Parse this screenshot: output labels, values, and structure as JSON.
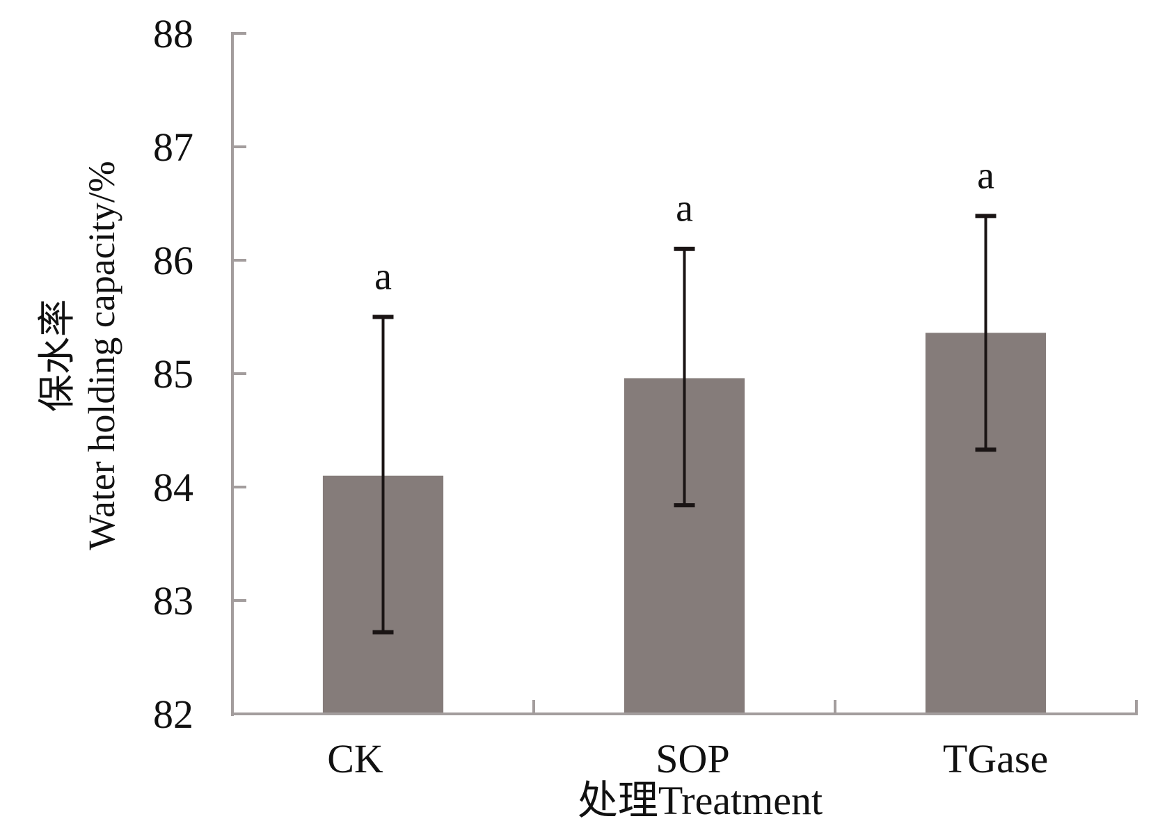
{
  "chart_data": {
    "type": "bar",
    "title": "",
    "categories": [
      "CK",
      "SOP",
      "TGase"
    ],
    "series": [
      {
        "name": "Water holding capacity",
        "values": [
          84.1,
          84.96,
          85.36
        ],
        "error_upper": [
          85.5,
          86.1,
          86.39
        ],
        "error_lower": [
          82.72,
          83.84,
          84.33
        ],
        "significance": [
          "a",
          "a",
          "a"
        ]
      }
    ],
    "xlabel": "处理Treatment",
    "ylabel_lines": [
      "保水率",
      "Water holding capacity/%"
    ],
    "ylim": [
      82,
      88
    ],
    "yticks": [
      82,
      83,
      84,
      85,
      86,
      87,
      88
    ],
    "grid": false,
    "legend": "none",
    "colors": {
      "bar": "#857c7a",
      "axis": "#a39d9d",
      "error_bar": "#1a1414",
      "text": "#111111"
    }
  }
}
